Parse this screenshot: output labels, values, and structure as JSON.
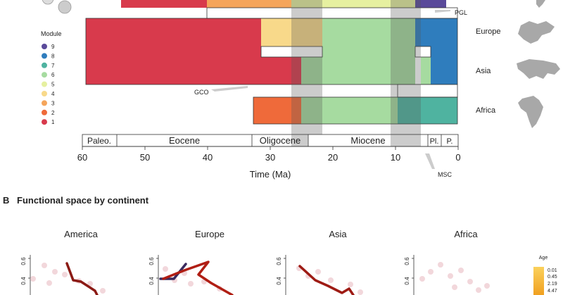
{
  "panel_a": {
    "legend": {
      "title": "Module",
      "items": [
        {
          "label": "9",
          "color": "#5a4a9a"
        },
        {
          "label": "8",
          "color": "#2f7dbd"
        },
        {
          "label": "7",
          "color": "#4fb3a0"
        },
        {
          "label": "6",
          "color": "#a6dba0"
        },
        {
          "label": "5",
          "color": "#e6f0a0"
        },
        {
          "label": "4",
          "color": "#f8d98a"
        },
        {
          "label": "3",
          "color": "#f5a55b"
        },
        {
          "label": "2",
          "color": "#ef6a3a"
        },
        {
          "label": "1",
          "color": "#d83a4c"
        }
      ]
    },
    "continents": [
      "PGL",
      "Europe",
      "Asia",
      "Africa"
    ],
    "events": [
      "GCO",
      "MSC"
    ],
    "epochs": [
      "Paleo.",
      "Eocene",
      "Oligocene",
      "Miocene",
      "Pl.",
      "P."
    ],
    "axis": {
      "ticks": [
        "60",
        "50",
        "40",
        "30",
        "20",
        "10",
        "0"
      ],
      "label": "Time (Ma)"
    }
  },
  "panel_b": {
    "letter": "B",
    "title": "Functional space by continent",
    "continents": [
      "America",
      "Europe",
      "Asia",
      "Africa"
    ],
    "y_ticks": [
      "0.6",
      "0.4"
    ],
    "age_legend": {
      "title": "Age",
      "values": [
        "0.01",
        "0.45",
        "2.19",
        "4.47"
      ]
    }
  }
}
